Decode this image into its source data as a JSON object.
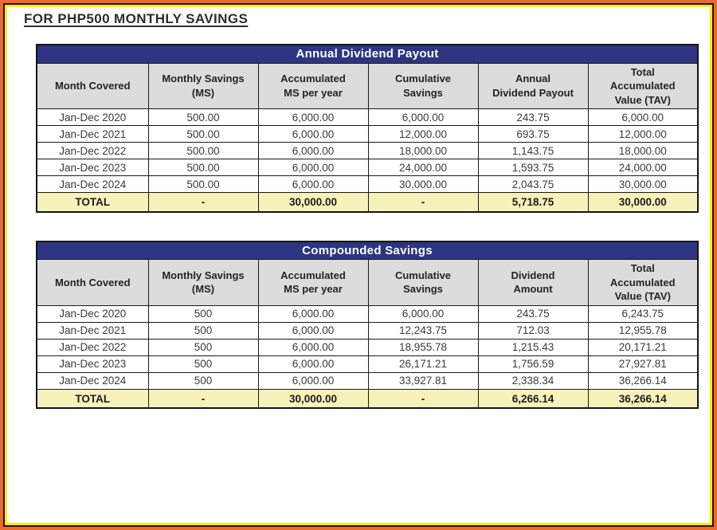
{
  "page": {
    "title": "FOR PHP500 MONTHLY SAVINGS"
  },
  "colors": {
    "frame_orange": "#ed6a2d",
    "frame_yellow": "#fbf000",
    "table_title_navy": "#2d3583",
    "column_header_gray": "#dcdcdc",
    "total_row_yellow": "#f7f1ba"
  },
  "tables": [
    {
      "title": "Annual Dividend Payout",
      "columns": [
        "Month Covered",
        "Monthly Savings\n(MS)",
        "Accumulated\nMS per year",
        "Cumulative\nSavings",
        "Annual\nDividend Payout",
        "Total\nAccumulated\nValue (TAV)"
      ],
      "rows": [
        [
          "Jan-Dec 2020",
          "500.00",
          "6,000.00",
          "6,000.00",
          "243.75",
          "6,000.00"
        ],
        [
          "Jan-Dec 2021",
          "500.00",
          "6,000.00",
          "12,000.00",
          "693.75",
          "12,000.00"
        ],
        [
          "Jan-Dec 2022",
          "500.00",
          "6,000.00",
          "18,000.00",
          "1,143.75",
          "18,000.00"
        ],
        [
          "Jan-Dec 2023",
          "500.00",
          "6,000.00",
          "24,000.00",
          "1,593.75",
          "24,000.00"
        ],
        [
          "Jan-Dec 2024",
          "500.00",
          "6,000.00",
          "30,000.00",
          "2,043.75",
          "30,000.00"
        ]
      ],
      "total_row": [
        "TOTAL",
        "-",
        "30,000.00",
        "-",
        "5,718.75",
        "30,000.00"
      ]
    },
    {
      "title": "Compounded Savings",
      "columns": [
        "Month Covered",
        "Monthly Savings\n(MS)",
        "Accumulated\nMS per year",
        "Cumulative\nSavings",
        "Dividend\nAmount",
        "Total\nAccumulated\nValue (TAV)"
      ],
      "rows": [
        [
          "Jan-Dec 2020",
          "500",
          "6,000.00",
          "6,000.00",
          "243.75",
          "6,243.75"
        ],
        [
          "Jan-Dec 2021",
          "500",
          "6,000.00",
          "12,243.75",
          "712.03",
          "12,955.78"
        ],
        [
          "Jan-Dec 2022",
          "500",
          "6,000.00",
          "18,955.78",
          "1,215.43",
          "20,171.21"
        ],
        [
          "Jan-Dec 2023",
          "500",
          "6,000.00",
          "26,171.21",
          "1,756.59",
          "27,927.81"
        ],
        [
          "Jan-Dec 2024",
          "500",
          "6,000.00",
          "33,927.81",
          "2,338.34",
          "36,266.14"
        ]
      ],
      "total_row": [
        "TOTAL",
        "-",
        "30,000.00",
        "-",
        "6,266.14",
        "36,266.14"
      ]
    }
  ]
}
